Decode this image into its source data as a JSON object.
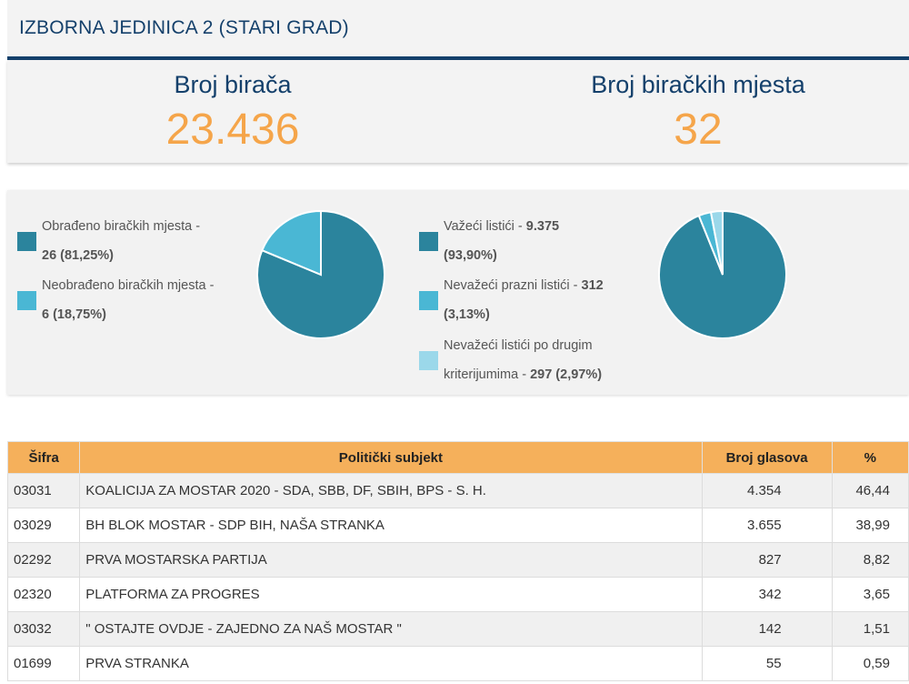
{
  "header": {
    "title": "IZBORNA JEDINICA 2 (STARI GRAD)"
  },
  "stats": {
    "voters_label": "Broj birača",
    "voters_value": "23.436",
    "places_label": "Broj biračkih mjesta",
    "places_value": "32"
  },
  "colors": {
    "dark_teal": "#2b849d",
    "teal": "#4ab7d4",
    "light_teal": "#9bd8ea",
    "orange": "#f5a54a",
    "navy": "#14406b"
  },
  "pie1": {
    "legend": [
      {
        "text": "Obrađeno biračkih mjesta -",
        "value": "26 (81,25%)",
        "color": "#2b849d"
      },
      {
        "text": "Neobrađeno biračkih mjesta -",
        "value": "6 (18,75%)",
        "color": "#4ab7d4"
      }
    ],
    "slices": [
      81.25,
      18.75
    ]
  },
  "pie2": {
    "legend": [
      {
        "text": "Važeći listići -",
        "value": "9.375",
        "pct": "(93,90%)",
        "color": "#2b849d"
      },
      {
        "text": "Nevažeći prazni listići -",
        "value": "312",
        "pct": "(3,13%)",
        "color": "#4ab7d4"
      },
      {
        "text": "Nevažeći listići po drugim",
        "text2": "kriterijumima -",
        "value": "297",
        "pct": "(2,97%)",
        "color": "#9bd8ea"
      }
    ],
    "slices": [
      93.9,
      3.13,
      2.97
    ]
  },
  "table": {
    "headers": [
      "Šifra",
      "Politički subjekt",
      "Broj glasova",
      "%"
    ],
    "rows": [
      {
        "code": "03031",
        "name": "KOALICIJA ZA MOSTAR 2020 - SDA, SBB, DF, SBIH, BPS - S. H.",
        "votes": "4.354",
        "pct": "46,44"
      },
      {
        "code": "03029",
        "name": "BH BLOK MOSTAR - SDP BIH, NAŠA STRANKA",
        "votes": "3.655",
        "pct": "38,99"
      },
      {
        "code": "02292",
        "name": "PRVA MOSTARSKA PARTIJA",
        "votes": "827",
        "pct": "8,82"
      },
      {
        "code": "02320",
        "name": "PLATFORMA ZA PROGRES",
        "votes": "342",
        "pct": "3,65"
      },
      {
        "code": "03032",
        "name": "\" OSTAJTE OVDJE - ZAJEDNO ZA NAŠ MOSTAR \"",
        "votes": "142",
        "pct": "1,51"
      },
      {
        "code": "01699",
        "name": "PRVA STRANKA",
        "votes": "55",
        "pct": "0,59"
      }
    ]
  }
}
